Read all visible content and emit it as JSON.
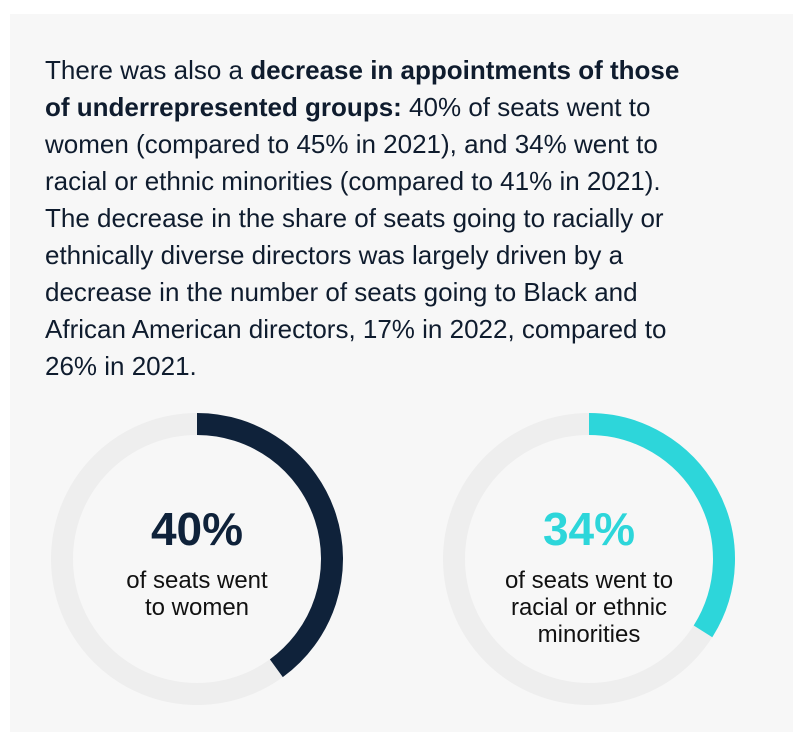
{
  "intro": {
    "part1": "There was also a ",
    "bold": "decrease in appointments of those of underrepresented groups:",
    "part2": " 40% of seats went to women (compared to 45% in 2021), and 34% went to racial or ethnic minorities (compared to 41% in 2021). The decrease in the share of seats going to racially or ethnically diverse directors was largely driven by a decrease in the number of seats going to Black and African American directors, 17% in 2022, compared to 26% in 2021."
  },
  "colors": {
    "panel_bg": "#f7f7f7",
    "track": "#eeeeee",
    "navy": "#0f223a",
    "teal": "#2dd6da"
  },
  "chart_data": [
    {
      "type": "pie",
      "value_percent": 40,
      "value_label": "40%",
      "caption": "of seats went\nto women",
      "color": "#0f223a",
      "track_color": "#eeeeee"
    },
    {
      "type": "pie",
      "value_percent": 34,
      "value_label": "34%",
      "caption": "of seats went to\nracial or ethnic\nminorities",
      "color": "#2dd6da",
      "track_color": "#eeeeee"
    }
  ]
}
